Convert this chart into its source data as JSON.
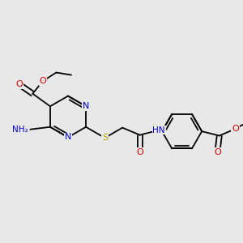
{
  "bg_color": "#e8e8e8",
  "bond_color": "#000000",
  "atom_colors": {
    "N": "#0000cc",
    "O": "#dd0000",
    "S": "#bbaa00",
    "C": "#000000"
  },
  "bond_lw": 1.3,
  "font_size": 7.5,
  "figsize": [
    3.0,
    3.0
  ],
  "dpi": 100
}
